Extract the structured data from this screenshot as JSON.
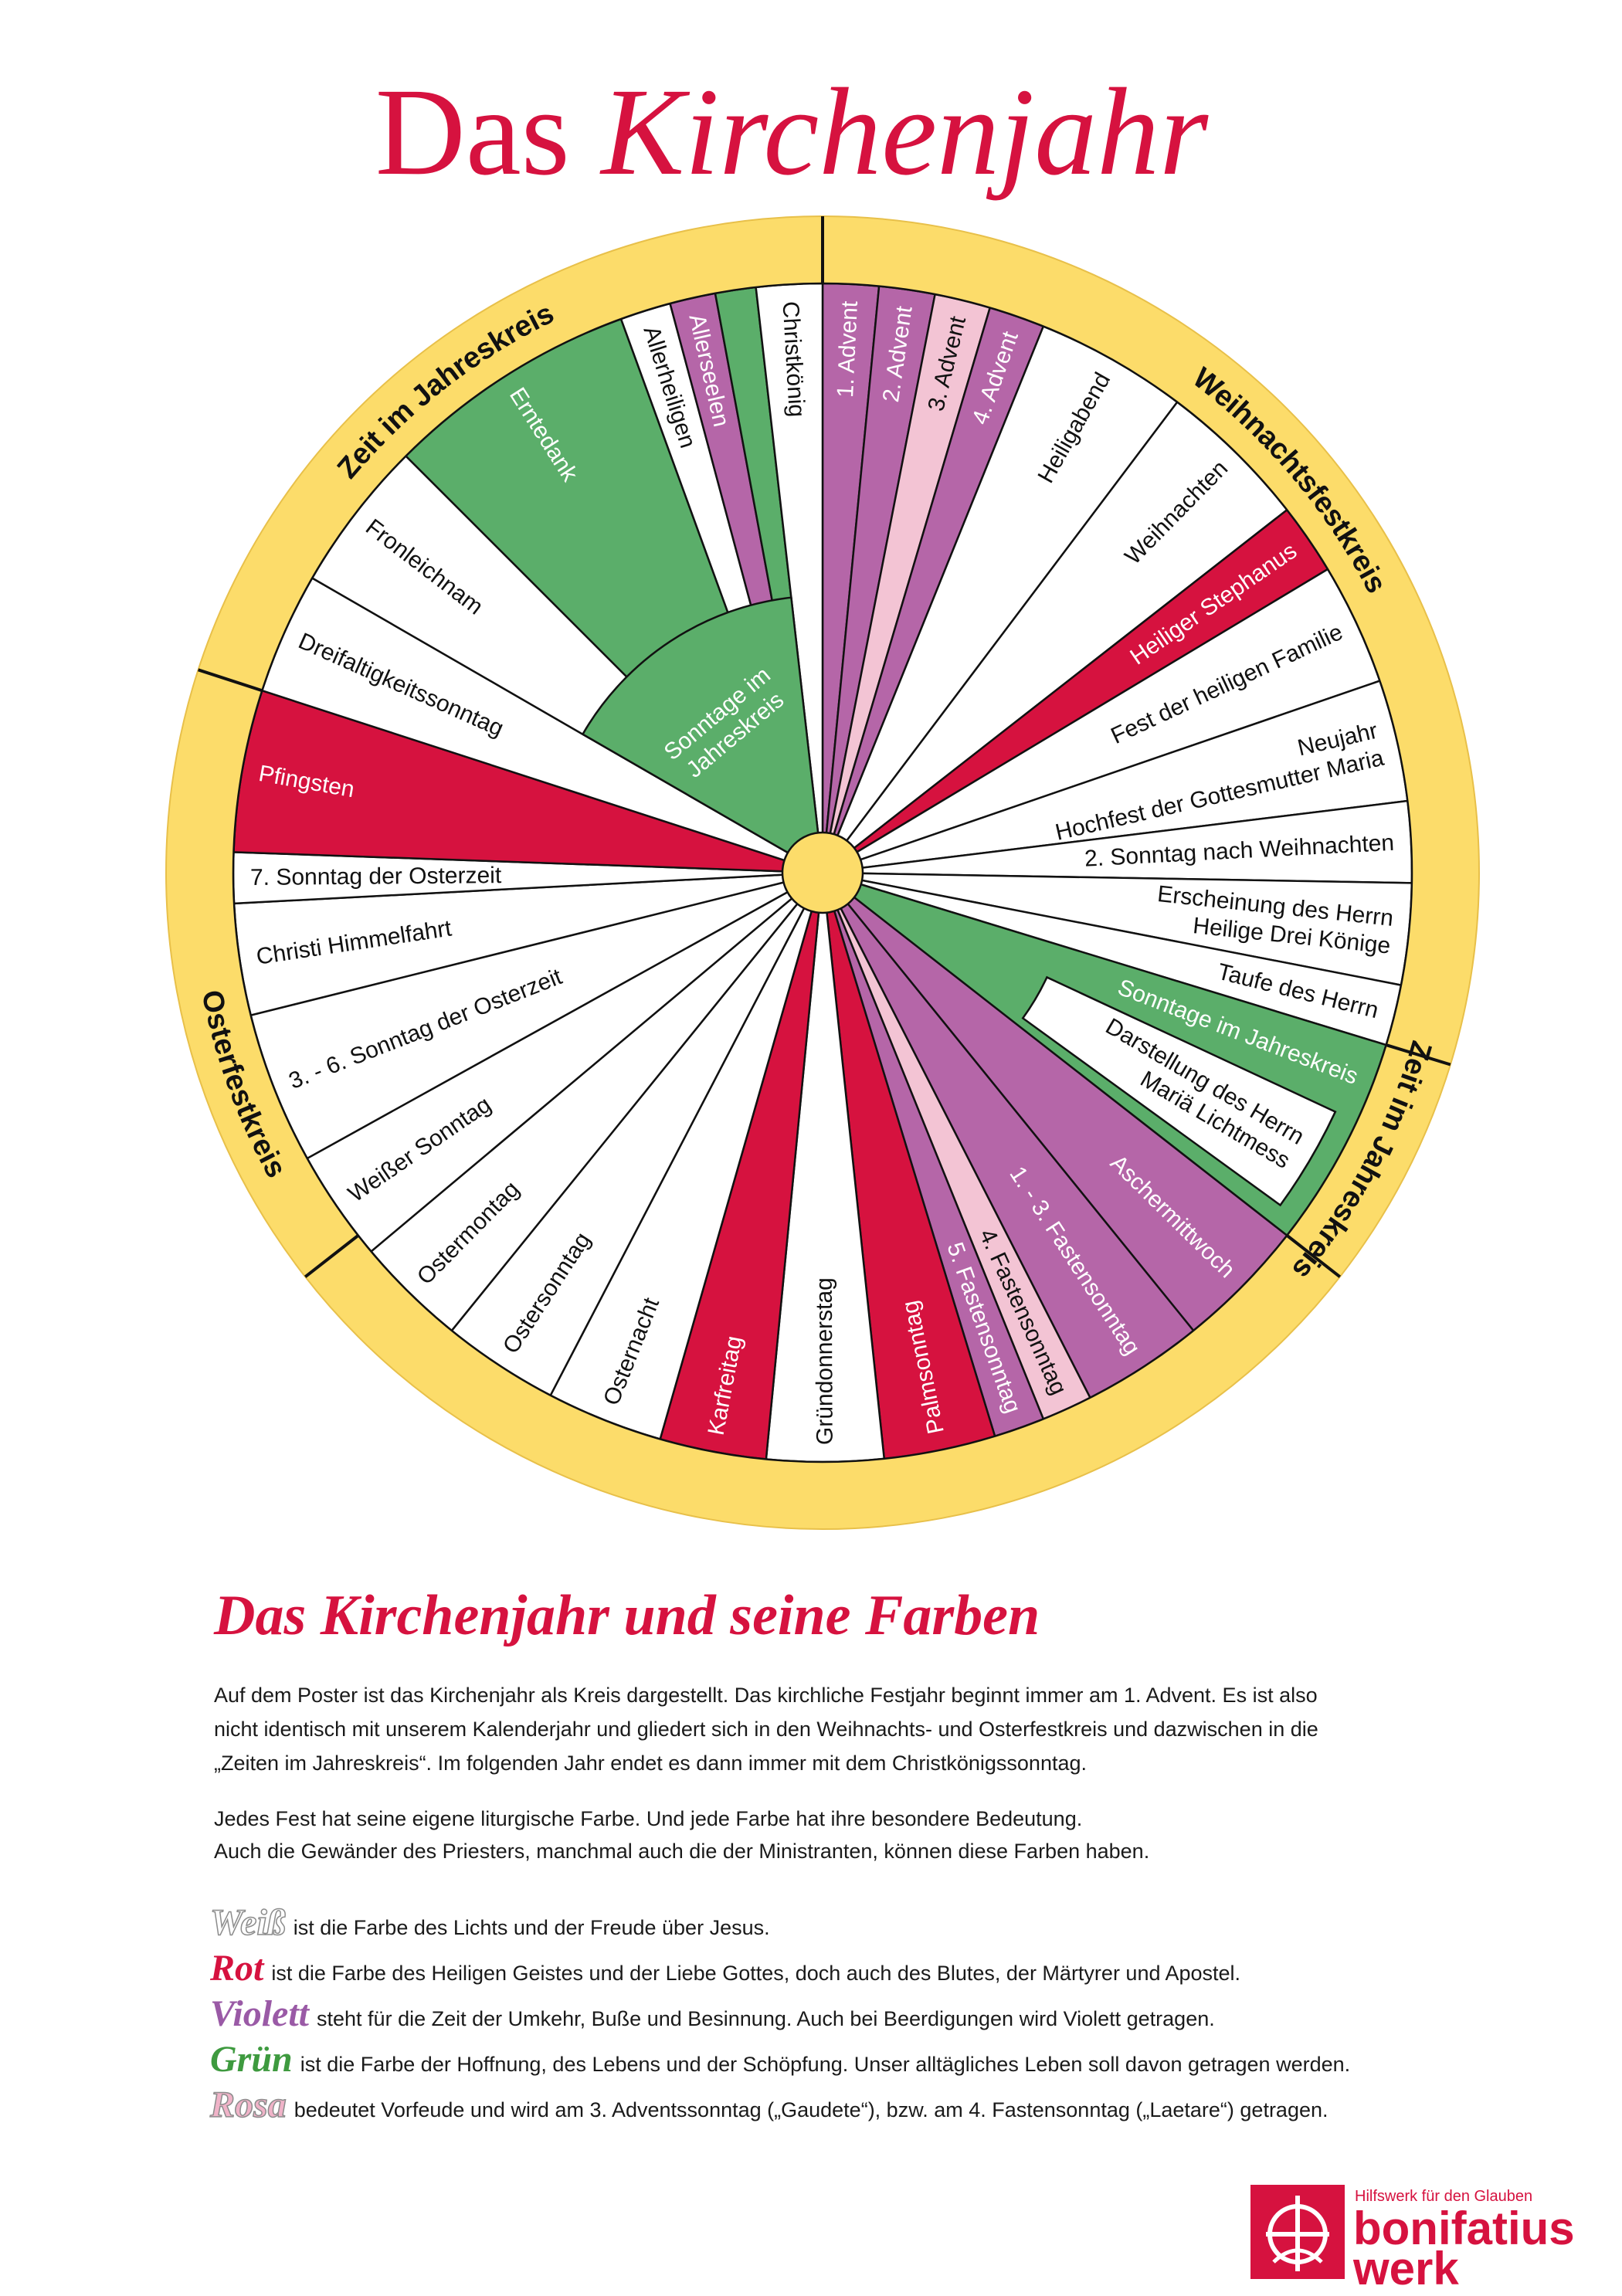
{
  "title": {
    "regular": "Das",
    "italic": "Kirchenjahr"
  },
  "wheel": {
    "segments": [
      {
        "label": [
          "1. Advent"
        ],
        "color": "#b566a8"
      },
      {
        "label": [
          "2. Advent"
        ],
        "color": "#b566a8"
      },
      {
        "label": [
          "3. Advent"
        ],
        "color": "#f3c4d4"
      },
      {
        "label": [
          "4. Advent"
        ],
        "color": "#b566a8"
      },
      {
        "label": [
          "Heiligabend"
        ],
        "color": "#ffffff"
      },
      {
        "label": [
          "Weihnachten"
        ],
        "color": "#ffffff"
      },
      {
        "label": [
          "Heiliger Stephanus"
        ],
        "color": "#d6123f"
      },
      {
        "label": [
          "Fest der heiligen Familie"
        ],
        "color": "#ffffff"
      },
      {
        "label": [
          "Neujahr",
          "Hochfest der Gottesmutter Maria"
        ],
        "color": "#ffffff"
      },
      {
        "label": [
          "2. Sonntag nach Weihnachten"
        ],
        "color": "#ffffff"
      },
      {
        "label": [
          "Erscheinung des Herrn",
          "Heilige Drei Könige"
        ],
        "color": "#ffffff"
      },
      {
        "label": [
          "Taufe des Herrn"
        ],
        "color": "#ffffff"
      },
      {
        "label": [
          "Sonntage im Jahreskreis"
        ],
        "color": "#5bae6a"
      },
      {
        "label": [
          "Aschermittwoch"
        ],
        "color": "#b566a8"
      },
      {
        "label": [
          "1. - 3. Fastensonntag"
        ],
        "color": "#b566a8"
      },
      {
        "label": [
          "4. Fastensonntag"
        ],
        "color": "#f3c4d4"
      },
      {
        "label": [
          "5. Fastensonntag"
        ],
        "color": "#b566a8"
      },
      {
        "label": [
          "Palmsonntag"
        ],
        "color": "#d6123f"
      },
      {
        "label": [
          "Gründonnerstag"
        ],
        "color": "#ffffff"
      },
      {
        "label": [
          "Karfreitag"
        ],
        "color": "#d6123f"
      },
      {
        "label": [
          "Osternacht"
        ],
        "color": "#ffffff"
      },
      {
        "label": [
          "Ostersonntag"
        ],
        "color": "#ffffff"
      },
      {
        "label": [
          "Ostermontag"
        ],
        "color": "#ffffff"
      },
      {
        "label": [
          "Weißer Sonntag"
        ],
        "color": "#ffffff"
      },
      {
        "label": [
          "3. - 6. Sonntag der Osterzeit"
        ],
        "color": "#ffffff"
      },
      {
        "label": [
          "Christi Himmelfahrt"
        ],
        "color": "#ffffff"
      },
      {
        "label": [
          "7. Sonntag der Osterzeit"
        ],
        "color": "#ffffff"
      },
      {
        "label": [
          "Pfingsten"
        ],
        "color": "#d6123f"
      },
      {
        "label": [
          "Dreifaltigkeitssonntag"
        ],
        "color": "#ffffff"
      },
      {
        "label": [
          "Fronleichnam"
        ],
        "color": "#ffffff"
      },
      {
        "label": [
          "Erntedank"
        ],
        "color": "#5bae6a"
      },
      {
        "label": [
          "Allerheiligen"
        ],
        "color": "#ffffff"
      },
      {
        "label": [
          "Allerseelen"
        ],
        "color": "#b566a8"
      },
      {
        "color": "#5bae6a"
      },
      {
        "label": [
          "Christkönig"
        ],
        "color": "#ffffff"
      }
    ],
    "inner_label": [
      "Sonntage im",
      "Jahreskreis"
    ],
    "inner_color": "#5bae6a",
    "inset_label": [
      "Darstellung des Herrn",
      "Mariä Lichtmess"
    ],
    "inset_color": "#ffffff",
    "ring_color": "#fcdc6a",
    "seasons": [
      "Zeit im Jahreskreis",
      "Weihnachtsfestkreis",
      "Zeit im Jahreskreis",
      "Osterfestkreis"
    ]
  },
  "section": {
    "heading": "Das Kirchenjahr und seine Farben",
    "paragraphs": [
      [
        "Auf dem Poster ist das Kirchenjahr als Kreis dargestellt. Das kirchliche Festjahr beginnt immer am 1. Advent. Es ist also",
        "nicht identisch mit unserem Kalenderjahr und gliedert sich in den Weihnachts- und Osterfestkreis und dazwischen in die",
        "„Zeiten im Jahreskreis“. Im folgenden Jahr endet es dann immer mit dem Christkönigssonntag."
      ],
      [
        "Jedes Fest hat seine eigene liturgische Farbe. Und jede Farbe hat ihre besondere Bedeutung.",
        "Auch die Gewänder des Priesters, manchmal auch die der Ministranten, können diese Farben haben."
      ]
    ],
    "colors": [
      {
        "word": "Weiß",
        "text": "ist die Farbe des Lichts und der Freude über Jesus.",
        "color": "#ffffff"
      },
      {
        "word": "Rot",
        "text": "ist die Farbe des Heiligen Geistes und der Liebe Gottes, doch auch des Blutes, der Märtyrer und Apostel.",
        "color": "#d6123f"
      },
      {
        "word": "Violett",
        "text": "steht für die Zeit der Umkehr, Buße und Besinnung. Auch bei Beerdigungen wird Violett getragen.",
        "color": "#9a5aa6"
      },
      {
        "word": "Grün",
        "text": "ist die Farbe der Hoffnung, des Lebens und der Schöpfung. Unser alltägliches Leben soll davon getragen werden.",
        "color": "#3e9a3f"
      },
      {
        "word": "Rosa",
        "text": "bedeutet Vorfeude und wird am 3. Adventssonntag („Gaudete“), bzw. am 4. Fastensonntag („Laetare“) getragen.",
        "color": "#f0b3c8"
      }
    ]
  },
  "logo": {
    "tagline": "Hilfswerk für den Glauben",
    "name": [
      "bonifatius",
      "werk"
    ]
  }
}
